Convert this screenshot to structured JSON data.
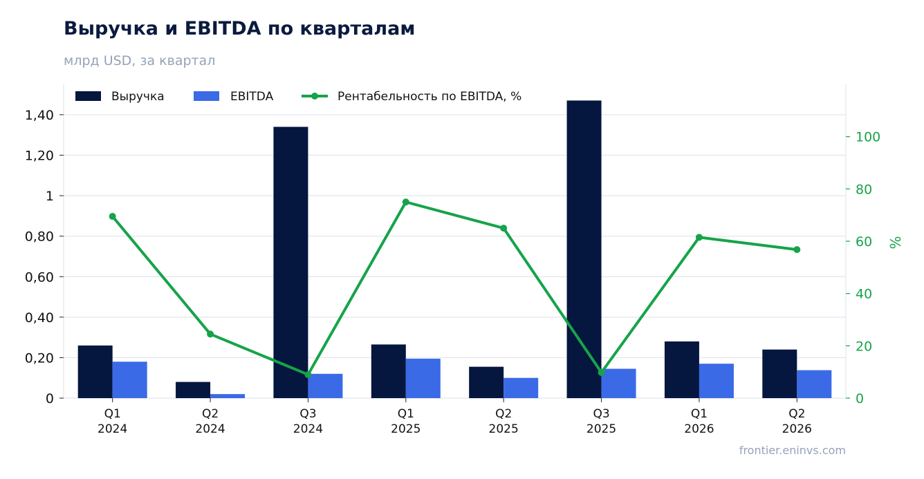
{
  "header": {
    "title": "Выручка и EBITDA по кварталам",
    "subtitle": "млрд USD, за квартал"
  },
  "footer": {
    "source": "frontier.eninvs.com"
  },
  "colors": {
    "revenue": "#05163f",
    "ebitda": "#3b6ae6",
    "margin": "#16a34a",
    "grid": "#e2e5ee",
    "text": "#111111"
  },
  "chart_data": {
    "type": "bar",
    "categories": [
      [
        "Q1",
        "2024"
      ],
      [
        "Q2",
        "2024"
      ],
      [
        "Q3",
        "2024"
      ],
      [
        "Q1",
        "2025"
      ],
      [
        "Q2",
        "2025"
      ],
      [
        "Q3",
        "2025"
      ],
      [
        "Q1",
        "2026"
      ],
      [
        "Q2",
        "2026"
      ]
    ],
    "series": [
      {
        "name": "Выручка",
        "type": "bar",
        "axis": "left",
        "values": [
          0.26,
          0.08,
          1.34,
          0.265,
          0.155,
          1.47,
          0.28,
          0.24
        ]
      },
      {
        "name": "EBITDA",
        "type": "bar",
        "axis": "left",
        "values": [
          0.18,
          0.02,
          0.12,
          0.195,
          0.1,
          0.145,
          0.17,
          0.138
        ]
      },
      {
        "name": "Рентабельность по EBITDA, %",
        "type": "line",
        "axis": "right",
        "values": [
          69.5,
          24.5,
          9,
          75,
          65,
          9.8,
          61.5,
          56.8
        ]
      }
    ],
    "ylim": [
      0,
      1.55
    ],
    "y2lim": [
      0,
      120
    ],
    "yticks": [
      0,
      0.2,
      0.4,
      0.6,
      0.8,
      1,
      1.2,
      1.4
    ],
    "ytick_labels": [
      "0",
      "0,20",
      "0,40",
      "0,60",
      "0,80",
      "1",
      "1,20",
      "1,40"
    ],
    "y2ticks": [
      0,
      20,
      40,
      60,
      80,
      100
    ],
    "y2label": "%",
    "grid": true,
    "legend_position": "top-left"
  }
}
